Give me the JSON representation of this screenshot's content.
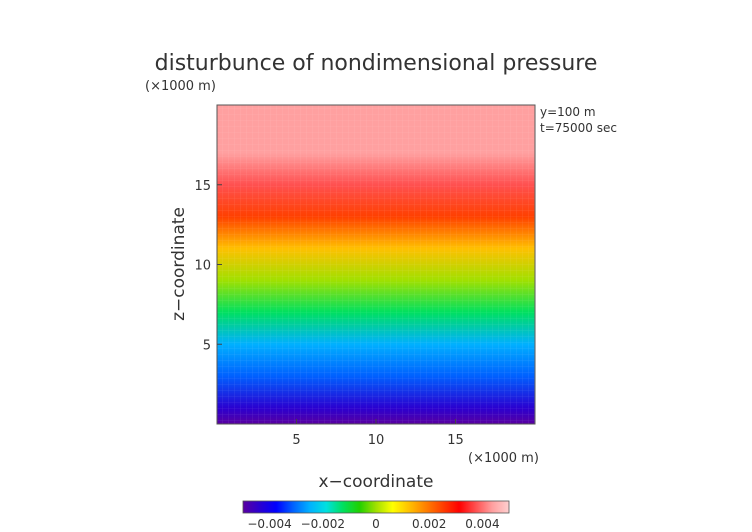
{
  "chart_data": {
    "type": "heatmap",
    "title": "disturbunce of nondimensional pressure",
    "z_unit_label": "(×1000 m)",
    "x_unit_label": "(×1000 m)",
    "xlabel": "x−coordinate",
    "ylabel": "z−coordinate",
    "annotations": [
      "y=100  m",
      "t=75000 sec"
    ],
    "xlim": [
      0,
      20
    ],
    "ylim": [
      0,
      20
    ],
    "x_ticks": [
      5,
      10,
      15
    ],
    "y_ticks": [
      5,
      10,
      15
    ],
    "colorbar": {
      "range": [
        -0.005,
        0.005
      ],
      "ticks": [
        {
          "value": -0.004,
          "label": "−0.004"
        },
        {
          "value": -0.002,
          "label": "−0.002"
        },
        {
          "value": 0,
          "label": "0"
        },
        {
          "value": 0.002,
          "label": "0.002"
        },
        {
          "value": 0.004,
          "label": "0.004"
        }
      ],
      "colors": [
        "#5a00a0",
        "#2a00d0",
        "#0000ff",
        "#0060ff",
        "#00b0ff",
        "#00e0e0",
        "#00e060",
        "#20d000",
        "#a0e000",
        "#ffff00",
        "#ffc000",
        "#ff8000",
        "#ff4000",
        "#ff0000",
        "#ff5050",
        "#ffa0a0",
        "#ffd0d0"
      ]
    },
    "field_profile": {
      "description_z": [
        0,
        1,
        3,
        5,
        7,
        9,
        11,
        13,
        15,
        17,
        20
      ],
      "value": [
        -0.0048,
        -0.0042,
        -0.0033,
        -0.0022,
        -0.001,
        0.0002,
        0.0012,
        0.0025,
        0.0037,
        0.0043,
        0.0044
      ]
    }
  }
}
